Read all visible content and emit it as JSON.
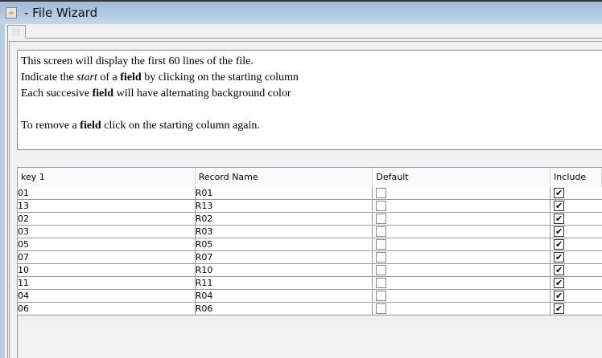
{
  "window": {
    "title": "- File Wizard",
    "icon": "java-icon"
  },
  "info": {
    "lines": [
      [
        {
          "t": "This screen will display the first 60 lines of the file."
        }
      ],
      [
        {
          "t": "Indicate the "
        },
        {
          "t": "start",
          "s": "i"
        },
        {
          "t": " of a "
        },
        {
          "t": "field",
          "s": "b"
        },
        {
          "t": " by clicking on the starting column"
        }
      ],
      [
        {
          "t": "Each succesive "
        },
        {
          "t": "field",
          "s": "b"
        },
        {
          "t": " will have alternating background color"
        }
      ],
      [],
      [
        {
          "t": "To remove a "
        },
        {
          "t": "field",
          "s": "b"
        },
        {
          "t": " click on the starting column again."
        }
      ]
    ]
  },
  "table": {
    "columns": [
      "key 1",
      "Record Name",
      "Default",
      "Include"
    ],
    "rows": [
      {
        "key": "01",
        "name": "R01",
        "default": false,
        "include": true
      },
      {
        "key": "13",
        "name": "R13",
        "default": false,
        "include": true
      },
      {
        "key": "02",
        "name": "R02",
        "default": false,
        "include": true
      },
      {
        "key": "03",
        "name": "R03",
        "default": false,
        "include": true
      },
      {
        "key": "05",
        "name": "R05",
        "default": false,
        "include": true
      },
      {
        "key": "07",
        "name": "R07",
        "default": false,
        "include": true
      },
      {
        "key": "10",
        "name": "R10",
        "default": false,
        "include": true
      },
      {
        "key": "11",
        "name": "R11",
        "default": false,
        "include": true
      },
      {
        "key": "04",
        "name": "R04",
        "default": false,
        "include": true
      },
      {
        "key": "06",
        "name": "R06",
        "default": false,
        "include": true
      }
    ]
  }
}
